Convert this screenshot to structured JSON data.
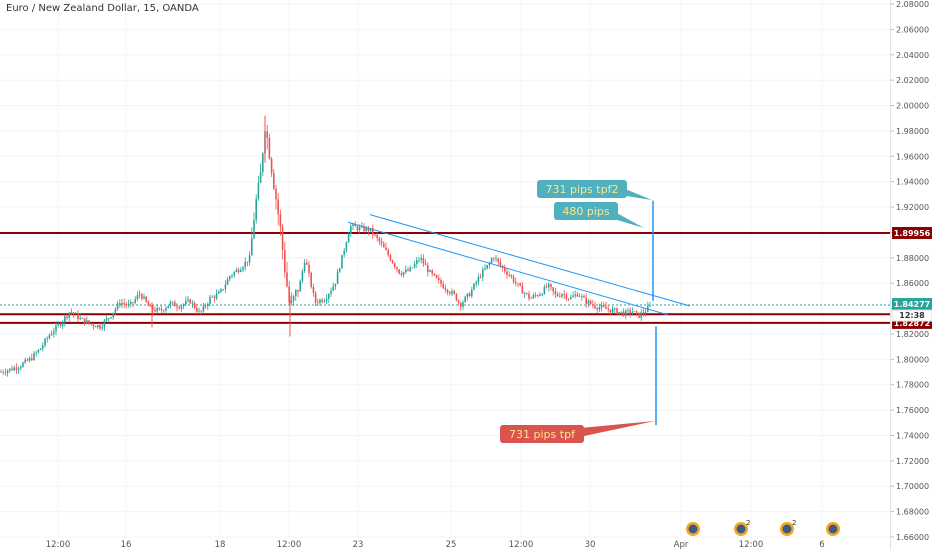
{
  "header": {
    "title": "Euro / New Zealand Dollar, 15, OANDA"
  },
  "colors": {
    "up": "#26a69a",
    "down": "#ef5350",
    "level": "#8b0000",
    "trendline": "#2196f3",
    "teal_label": "#4fb0c0",
    "teal_label_text": "#ffe58a",
    "red_label": "#d9534f",
    "red_label_text": "#ffe58a",
    "current_price_bg": "#26a69a"
  },
  "chart_data": {
    "type": "candlestick",
    "title": "Euro / New Zealand Dollar, 15, OANDA",
    "ylim": [
      1.66,
      2.09
    ],
    "y_ticks": [
      "2.08000",
      "2.06000",
      "2.04000",
      "2.02000",
      "2.00000",
      "1.98000",
      "1.96000",
      "1.94000",
      "1.92000",
      "1.90000",
      "1.88000",
      "1.86000",
      "1.84000",
      "1.82000",
      "1.80000",
      "1.78000",
      "1.76000",
      "1.74000",
      "1.72000",
      "1.70000",
      "1.68000",
      "1.66000"
    ],
    "x_ticks": [
      "12:00",
      "16",
      "18",
      "12:00",
      "23",
      "25",
      "12:00",
      "30",
      "Apr",
      "12:00",
      "6"
    ],
    "price_path": [
      [
        1.79,
        0
      ],
      [
        1.792,
        10
      ],
      [
        1.795,
        20
      ],
      [
        1.8,
        30
      ],
      [
        1.808,
        40
      ],
      [
        1.82,
        50
      ],
      [
        1.828,
        60
      ],
      [
        1.838,
        70
      ],
      [
        1.832,
        80
      ],
      [
        1.828,
        90
      ],
      [
        1.826,
        100
      ],
      [
        1.834,
        110
      ],
      [
        1.845,
        120
      ],
      [
        1.842,
        130
      ],
      [
        1.852,
        140
      ],
      [
        1.84,
        150
      ],
      [
        1.838,
        160
      ],
      [
        1.844,
        170
      ],
      [
        1.842,
        180
      ],
      [
        1.846,
        190
      ],
      [
        1.836,
        200
      ],
      [
        1.848,
        210
      ],
      [
        1.852,
        220
      ],
      [
        1.866,
        230
      ],
      [
        1.872,
        240
      ],
      [
        1.88,
        250
      ],
      [
        1.92,
        255
      ],
      [
        1.94,
        260
      ],
      [
        1.985,
        265
      ],
      [
        1.96,
        270
      ],
      [
        1.905,
        280
      ],
      [
        1.87,
        285
      ],
      [
        1.84,
        290
      ],
      [
        1.86,
        300
      ],
      [
        1.88,
        305
      ],
      [
        1.845,
        315
      ],
      [
        1.848,
        325
      ],
      [
        1.86,
        335
      ],
      [
        1.88,
        342
      ],
      [
        1.905,
        350
      ],
      [
        1.903,
        360
      ],
      [
        1.902,
        370
      ],
      [
        1.892,
        380
      ],
      [
        1.88,
        390
      ],
      [
        1.868,
        400
      ],
      [
        1.87,
        410
      ],
      [
        1.88,
        420
      ],
      [
        1.868,
        430
      ],
      [
        1.86,
        440
      ],
      [
        1.85,
        455
      ],
      [
        1.843,
        460
      ],
      [
        1.852,
        470
      ],
      [
        1.866,
        480
      ],
      [
        1.876,
        490
      ],
      [
        1.882,
        493
      ],
      [
        1.874,
        500
      ],
      [
        1.866,
        510
      ],
      [
        1.856,
        520
      ],
      [
        1.848,
        530
      ],
      [
        1.852,
        540
      ],
      [
        1.858,
        548
      ],
      [
        1.85,
        556
      ],
      [
        1.852,
        562
      ],
      [
        1.848,
        570
      ],
      [
        1.852,
        578
      ],
      [
        1.846,
        585
      ],
      [
        1.842,
        595
      ],
      [
        1.84,
        605
      ],
      [
        1.838,
        615
      ],
      [
        1.836,
        625
      ],
      [
        1.838,
        632
      ],
      [
        1.834,
        638
      ],
      [
        1.838,
        645
      ],
      [
        1.843,
        652
      ]
    ],
    "horizontal_levels": [
      {
        "price": 1.89956,
        "label": "1.89956"
      },
      {
        "price": 1.8355,
        "label": "1.83550"
      },
      {
        "price": 1.82872,
        "label": "1.82872"
      }
    ],
    "current_price": {
      "price": 1.84277,
      "label": "1.84277",
      "countdown": "12:38"
    },
    "trendlines": [
      {
        "from": [
          348,
          1.908
        ],
        "to": [
          668,
          1.835
        ]
      },
      {
        "from": [
          370,
          1.914
        ],
        "to": [
          690,
          1.842
        ]
      }
    ],
    "annotations": [
      {
        "text": "731 pips tpf2",
        "style": "teal"
      },
      {
        "text": "480 pips",
        "style": "teal"
      },
      {
        "text": "731 pips tpf",
        "style": "red"
      }
    ]
  }
}
